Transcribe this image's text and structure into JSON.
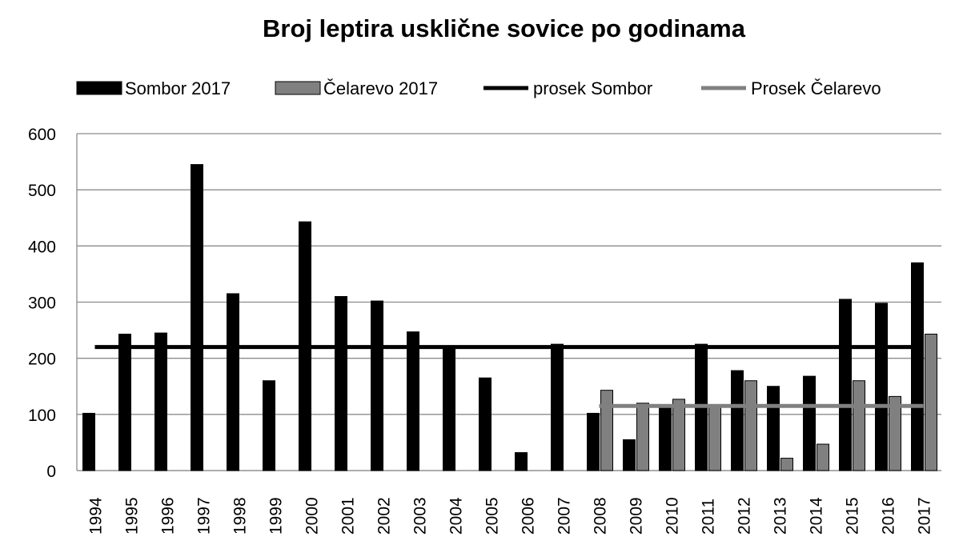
{
  "chart_data": {
    "type": "bar",
    "title": "Broj leptira usklične sovice po godinama",
    "categories": [
      "1994",
      "1995",
      "1996",
      "1997",
      "1998",
      "1999",
      "2000",
      "2001",
      "2002",
      "2003",
      "2004",
      "2005",
      "2006",
      "2007",
      "2008",
      "2009",
      "2010",
      "2011",
      "2012",
      "2013",
      "2014",
      "2015",
      "2016",
      "2017"
    ],
    "series": [
      {
        "name": "Sombor 2017",
        "kind": "bar",
        "color": "#000000",
        "values": [
          102,
          243,
          245,
          545,
          315,
          160,
          443,
          310,
          302,
          247,
          220,
          165,
          32,
          225,
          102,
          55,
          112,
          225,
          178,
          150,
          168,
          305,
          298,
          370
        ]
      },
      {
        "name": "Čelarevo 2017",
        "kind": "bar",
        "color": "#808080",
        "values": [
          null,
          null,
          null,
          null,
          null,
          null,
          null,
          null,
          null,
          null,
          null,
          null,
          null,
          null,
          143,
          120,
          127,
          115,
          160,
          22,
          47,
          160,
          132,
          243
        ]
      },
      {
        "name": "prosek Sombor",
        "kind": "line",
        "color": "#000000",
        "value": 220,
        "from": "1994",
        "to": "2017"
      },
      {
        "name": "Prosek Čelarevo",
        "kind": "line",
        "color": "#808080",
        "value": 115,
        "from": "2008",
        "to": "2017"
      }
    ],
    "ylim": [
      0,
      600
    ],
    "yticks": [
      "0",
      "100",
      "200",
      "300",
      "400",
      "500",
      "600"
    ],
    "grid": true,
    "legend": "top"
  }
}
